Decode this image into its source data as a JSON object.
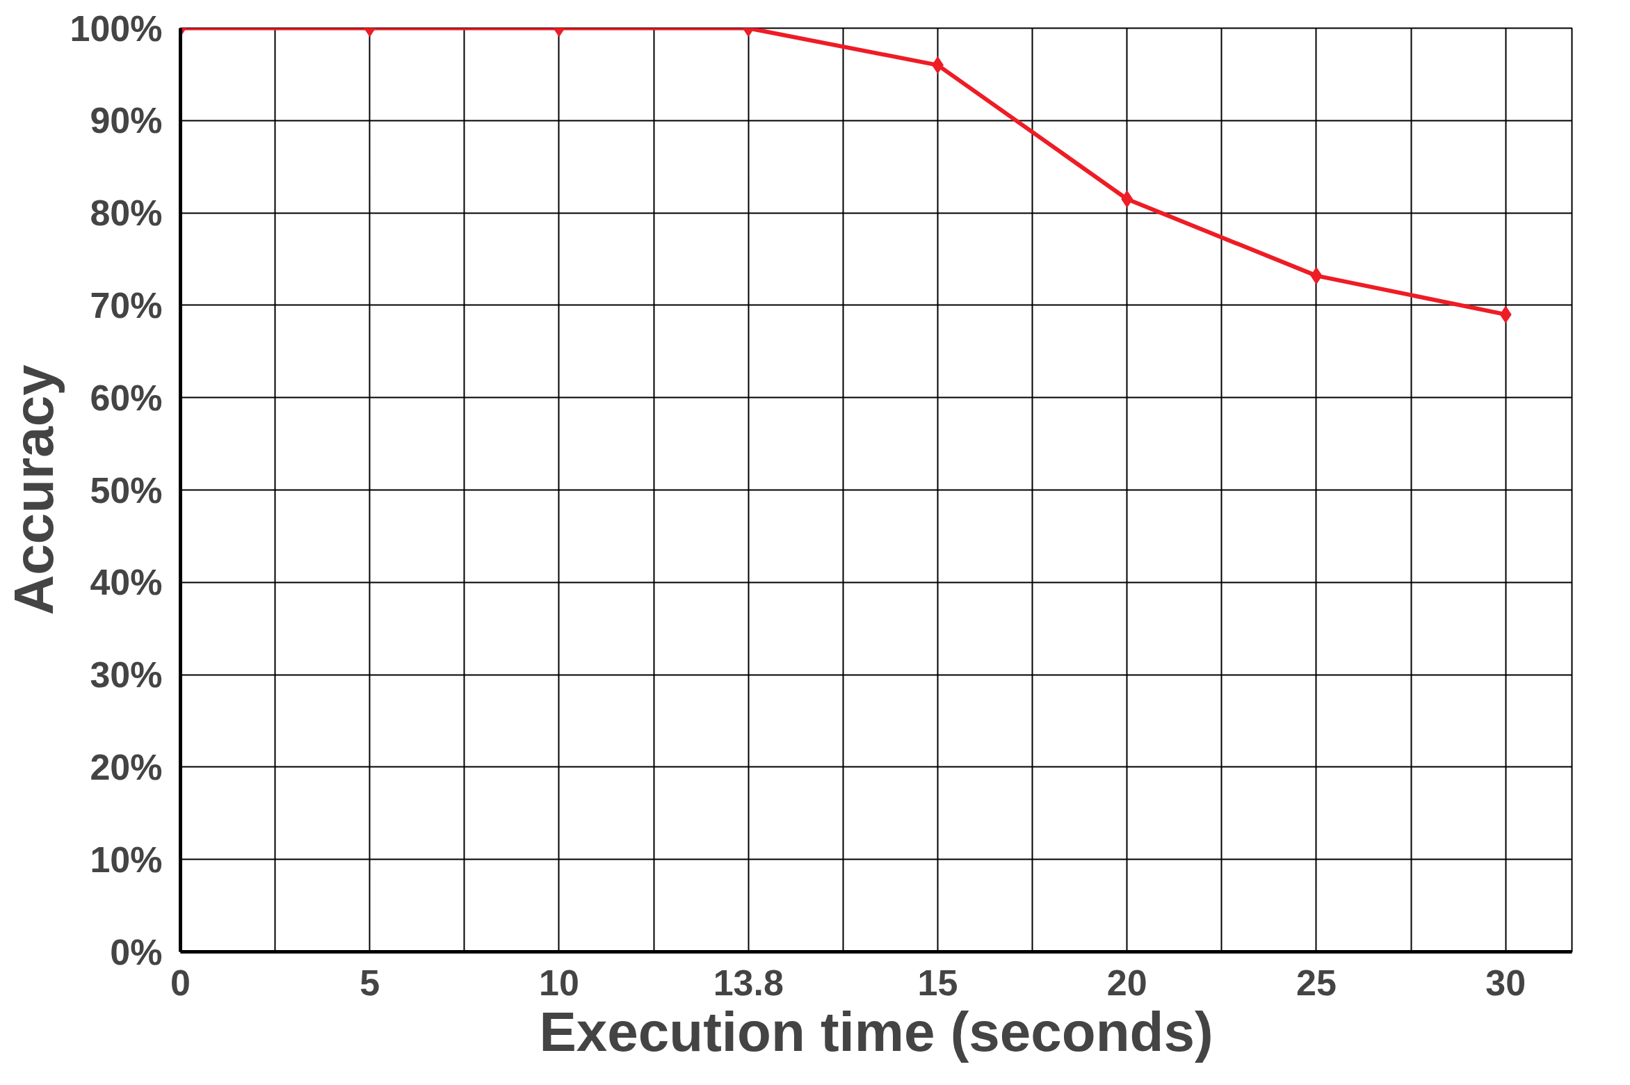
{
  "chart_data": {
    "type": "line",
    "xlabel": "Execution time (seconds)",
    "ylabel": "Accuracy",
    "categories": [
      "0",
      "5",
      "10",
      "13.8",
      "15",
      "20",
      "25",
      "30"
    ],
    "series": [
      {
        "color": "#ee1c25",
        "values": [
          100,
          100,
          100,
          100,
          96,
          81.5,
          73.2,
          69
        ]
      }
    ],
    "ylim": [
      0,
      100
    ],
    "yticks": [
      {
        "value": 0,
        "label": "0%"
      },
      {
        "value": 10,
        "label": "10%"
      },
      {
        "value": 20,
        "label": "20%"
      },
      {
        "value": 30,
        "label": "30%"
      },
      {
        "value": 40,
        "label": "40%"
      },
      {
        "value": 50,
        "label": "50%"
      },
      {
        "value": 60,
        "label": "60%"
      },
      {
        "value": 70,
        "label": "70%"
      },
      {
        "value": 80,
        "label": "80%"
      },
      {
        "value": 90,
        "label": "90%"
      },
      {
        "value": 100,
        "label": "100%"
      }
    ],
    "grid": true,
    "marker": "diamond",
    "line_style": "solid"
  }
}
